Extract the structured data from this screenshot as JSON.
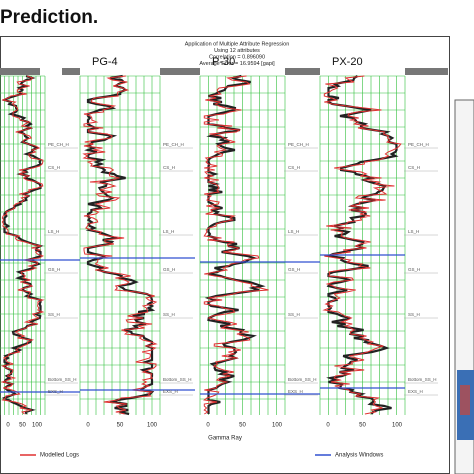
{
  "title": "Prediction.",
  "panel": {
    "header": [
      "Application of Multiple Attribute Regression",
      "Using 12 attributes",
      "Correlation = 0.896090",
      "Average Error = 16.9594 [gapi]"
    ],
    "wells": [
      "PG-4",
      "P-30",
      "PX-20"
    ],
    "markers": [
      "PE_CH_H",
      "CS_H",
      "LS_H",
      "GS_H",
      "SS_H",
      "Bottom_SS_H",
      "EXS_H"
    ],
    "axis_ticks": [
      "0",
      "50",
      "100"
    ],
    "axis_label": "Gamma Ray",
    "legend": [
      "Modelled Logs",
      "Analysis Windows"
    ]
  }
}
